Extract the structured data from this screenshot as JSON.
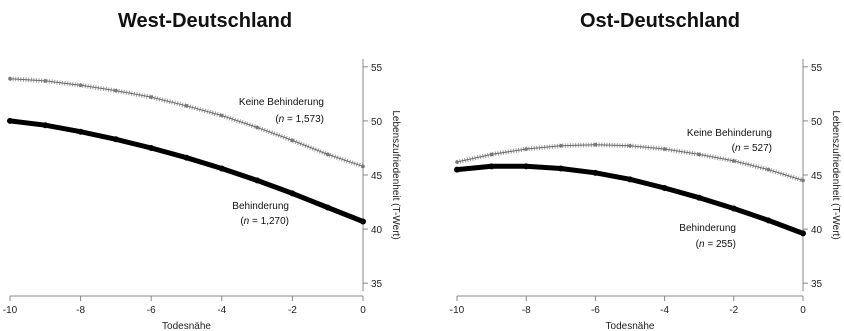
{
  "chart_data": [
    {
      "type": "line",
      "title": "West-Deutschland",
      "xlabel": "Todesnähe",
      "ylabel": "Lebenszufriedenheit (T-Wert)",
      "xlim": [
        -10,
        0
      ],
      "ylim": [
        34,
        56
      ],
      "x_ticks": [
        "-10",
        "-8",
        "-6",
        "-4",
        "-2",
        "0"
      ],
      "y_ticks": [
        "35",
        "40",
        "45",
        "50",
        "55"
      ],
      "grid": false,
      "series": [
        {
          "name": "Keine Behinderung",
          "n_label_prefix": "n",
          "n_label_value": "= 1,573",
          "color": "#9a9a9a",
          "marker": "cross",
          "x": [
            -10,
            -9,
            -8,
            -7,
            -6,
            -5,
            -4,
            -3,
            -2,
            -1,
            0
          ],
          "y": [
            53.9,
            53.7,
            53.3,
            52.8,
            52.2,
            51.4,
            50.5,
            49.4,
            48.2,
            46.9,
            45.8
          ]
        },
        {
          "name": "Behinderung",
          "n_label_prefix": "n",
          "n_label_value": "= 1,270",
          "color": "#000000",
          "marker": "dot",
          "x": [
            -10,
            -9,
            -8,
            -7,
            -6,
            -5,
            -4,
            -3,
            -2,
            -1,
            0
          ],
          "y": [
            50.0,
            49.6,
            49.0,
            48.3,
            47.5,
            46.6,
            45.6,
            44.5,
            43.3,
            42.0,
            40.7
          ]
        }
      ]
    },
    {
      "type": "line",
      "title": "Ost-Deutschland",
      "xlabel": "Todesnähe",
      "ylabel": "Lebenszufriedenheit (T-Wert)",
      "xlim": [
        -10,
        0
      ],
      "ylim": [
        34,
        56
      ],
      "x_ticks": [
        "-10",
        "-8",
        "-6",
        "-4",
        "-2",
        "0"
      ],
      "y_ticks": [
        "35",
        "40",
        "45",
        "50",
        "55"
      ],
      "grid": false,
      "series": [
        {
          "name": "Keine Behinderung",
          "n_label_prefix": "n",
          "n_label_value": "= 527",
          "color": "#9a9a9a",
          "marker": "cross",
          "x": [
            -10,
            -9,
            -8,
            -7,
            -6,
            -5,
            -4,
            -3,
            -2,
            -1,
            0
          ],
          "y": [
            46.2,
            46.9,
            47.4,
            47.7,
            47.8,
            47.7,
            47.4,
            46.9,
            46.3,
            45.5,
            44.5
          ]
        },
        {
          "name": "Behinderung",
          "n_label_prefix": "n",
          "n_label_value": "= 255",
          "color": "#000000",
          "marker": "dot",
          "x": [
            -10,
            -9,
            -8,
            -7,
            -6,
            -5,
            -4,
            -3,
            -2,
            -1,
            0
          ],
          "y": [
            45.5,
            45.8,
            45.8,
            45.6,
            45.2,
            44.6,
            43.8,
            42.9,
            41.9,
            40.8,
            39.6
          ]
        }
      ]
    }
  ]
}
